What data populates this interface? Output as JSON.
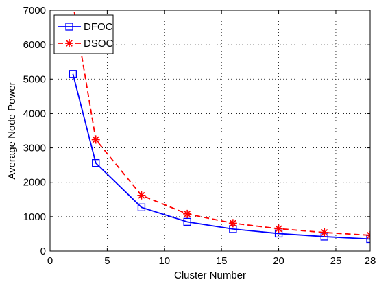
{
  "chart_data": {
    "type": "line",
    "title": "",
    "xlabel": "Cluster Number",
    "ylabel": "Average Node Power",
    "xlim": [
      0,
      28
    ],
    "ylim": [
      0,
      7000
    ],
    "xticks": [
      0,
      5,
      10,
      15,
      20,
      25,
      28
    ],
    "yticks": [
      0,
      1000,
      2000,
      3000,
      4000,
      5000,
      6000,
      7000
    ],
    "grid": true,
    "legend_position": "top-left",
    "series": [
      {
        "name": "DFOC",
        "color": "#0000ff",
        "line_style": "solid",
        "marker": "square",
        "x": [
          2,
          4,
          8,
          12,
          16,
          20,
          24,
          28
        ],
        "y": [
          5150,
          2560,
          1270,
          850,
          640,
          510,
          420,
          350
        ]
      },
      {
        "name": "DSOC",
        "color": "#ff0000",
        "line_style": "dashed",
        "marker": "asterisk",
        "x": [
          2,
          4,
          8,
          12,
          16,
          20,
          24,
          28
        ],
        "y": [
          7200,
          3240,
          1620,
          1080,
          810,
          650,
          540,
          460
        ]
      }
    ]
  }
}
